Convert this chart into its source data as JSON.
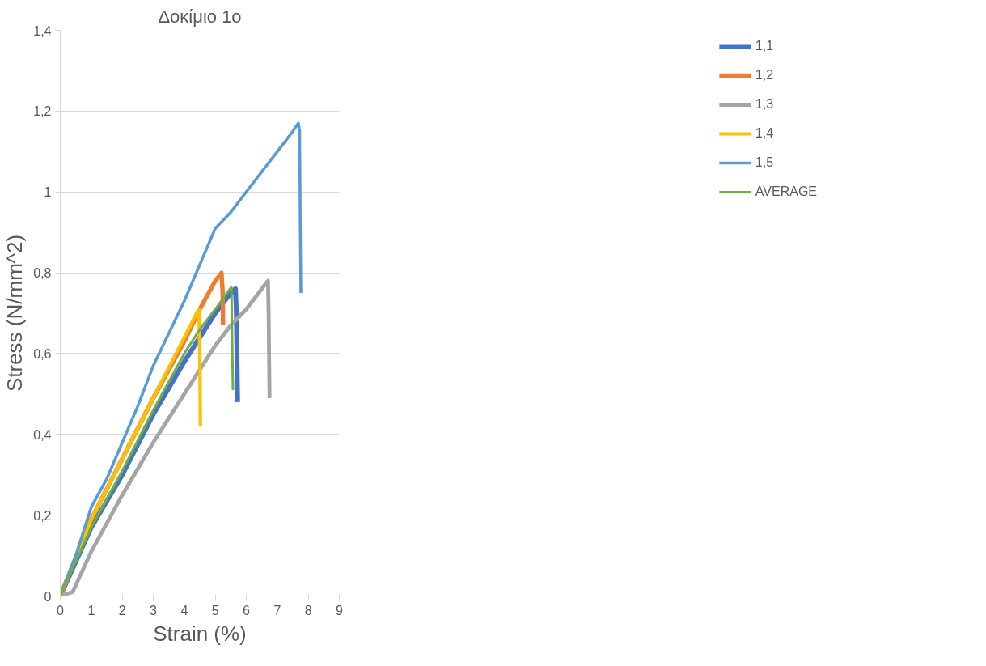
{
  "chart_data": {
    "type": "line",
    "title": "Δοκίμιο 1ο",
    "xlabel": "Strain (%)",
    "ylabel": "Stress (N/mm^2)",
    "xlim": [
      0,
      9
    ],
    "xticks": [
      0,
      1,
      2,
      3,
      4,
      5,
      6,
      7,
      8,
      9
    ],
    "ylim": [
      0,
      1.4
    ],
    "yticks": [
      0,
      {
        "value": 0.2,
        "label": "0,2"
      },
      {
        "value": 0.4,
        "label": "0,4"
      },
      {
        "value": 0.6,
        "label": "0,6"
      },
      {
        "value": 0.8,
        "label": "0,8"
      },
      1,
      {
        "value": 1.2,
        "label": "1,2"
      },
      {
        "value": 1.4,
        "label": "1,4"
      }
    ],
    "grid": "y",
    "legend": "right",
    "marker": "none",
    "line_style": "solid",
    "series": [
      {
        "name": "1,1",
        "color": "#4472c4",
        "x": [
          0,
          1,
          2,
          3,
          4,
          4.5,
          5,
          5.5,
          5.65,
          5.68,
          5.72
        ],
        "values": [
          0,
          0.17,
          0.3,
          0.45,
          0.58,
          0.64,
          0.7,
          0.75,
          0.76,
          0.7,
          0.48
        ]
      },
      {
        "name": "1,2",
        "color": "#ed7d31",
        "x": [
          0,
          1,
          2,
          3,
          4,
          4.5,
          5,
          5.2,
          5.24,
          5.25
        ],
        "values": [
          0,
          0.19,
          0.34,
          0.49,
          0.63,
          0.71,
          0.78,
          0.8,
          0.75,
          0.67
        ]
      },
      {
        "name": "1,3",
        "color": "#a5a5a5",
        "x": [
          0,
          0.4,
          1,
          2,
          3,
          4,
          5,
          5.5,
          6,
          6.5,
          6.7,
          6.72,
          6.75
        ],
        "values": [
          0,
          0.01,
          0.11,
          0.25,
          0.38,
          0.5,
          0.62,
          0.67,
          0.71,
          0.76,
          0.78,
          0.7,
          0.49
        ]
      },
      {
        "name": "1,4",
        "color": "#ffc000",
        "x": [
          0,
          1,
          2,
          3,
          4,
          4.4,
          4.47,
          4.5,
          4.52
        ],
        "values": [
          0,
          0.19,
          0.34,
          0.49,
          0.64,
          0.7,
          0.71,
          0.6,
          0.42
        ]
      },
      {
        "name": "1,5",
        "color": "#5b9bd5",
        "x": [
          0,
          0.5,
          1,
          1.5,
          2,
          2.5,
          3,
          3.5,
          4,
          4.5,
          5,
          5.5,
          6,
          6.5,
          7,
          7.5,
          7.68,
          7.72,
          7.74,
          7.76
        ],
        "values": [
          0,
          0.1,
          0.22,
          0.29,
          0.38,
          0.47,
          0.57,
          0.65,
          0.73,
          0.82,
          0.91,
          0.95,
          1.0,
          1.05,
          1.1,
          1.15,
          1.17,
          1.15,
          0.93,
          0.75
        ]
      },
      {
        "name": "AVERAGE",
        "color": "#70ad47",
        "x": [
          0,
          1,
          2,
          3,
          4,
          4.5,
          5,
          5.52,
          5.55,
          5.57
        ],
        "values": [
          0,
          0.17,
          0.31,
          0.46,
          0.6,
          0.66,
          0.71,
          0.765,
          0.6,
          0.51
        ]
      }
    ]
  }
}
